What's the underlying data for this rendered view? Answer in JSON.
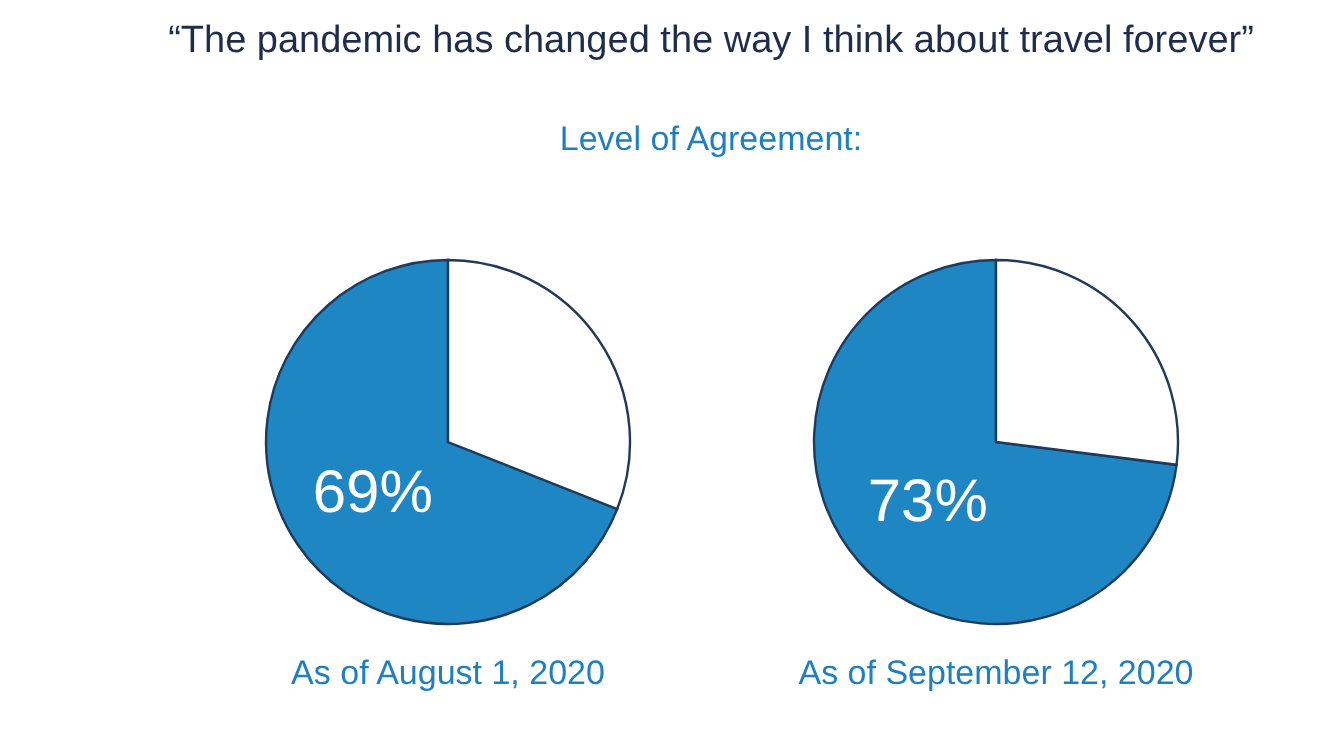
{
  "chart_data": [
    {
      "type": "pie",
      "title": "“The pandemic has changed the way I think about travel forever”",
      "subtitle": "Level of Agreement:",
      "xlabel": "As of August 1, 2020",
      "categories": [
        null,
        null
      ],
      "values": [
        69,
        31
      ],
      "colors": [
        "#1e86c2",
        "#ffffff"
      ],
      "value_labels": [
        "69%",
        null
      ]
    },
    {
      "type": "pie",
      "xlabel": "As of September 12, 2020",
      "categories": [
        null,
        null
      ],
      "values": [
        73,
        27
      ],
      "colors": [
        "#1e86c2",
        "#ffffff"
      ],
      "value_labels": [
        "73%",
        null
      ]
    }
  ]
}
